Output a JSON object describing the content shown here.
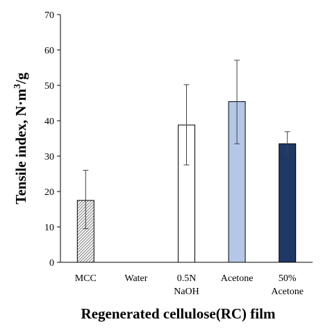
{
  "chart_data": {
    "type": "bar",
    "categories": [
      {
        "lines": [
          "MCC"
        ]
      },
      {
        "lines": [
          "Water"
        ]
      },
      {
        "lines": [
          "0.5N",
          "NaOH"
        ]
      },
      {
        "lines": [
          "Acetone"
        ]
      },
      {
        "lines": [
          "50%",
          "Acetone"
        ]
      }
    ],
    "values": [
      17.5,
      null,
      38.8,
      45.4,
      33.5
    ],
    "error_bars": [
      {
        "low": 9.5,
        "high": 26.0
      },
      null,
      {
        "low": 27.5,
        "high": 50.2
      },
      {
        "low": 33.5,
        "high": 57.1
      },
      {
        "low": 30.3,
        "high": 36.9
      }
    ],
    "bar_styles": [
      {
        "fill": "hatched",
        "stroke": "#000000"
      },
      {
        "fill": "none",
        "stroke": "#000000"
      },
      {
        "fill": "#ffffff",
        "stroke": "#000000"
      },
      {
        "fill": "#b4c7e7",
        "stroke": "#000000"
      },
      {
        "fill": "#1f3864",
        "stroke": "#000000"
      }
    ],
    "ylim": [
      0,
      70
    ],
    "yticks": [
      "0",
      "10",
      "20",
      "30",
      "40",
      "50",
      "60",
      "70"
    ],
    "ylabel": {
      "main": "Tensile index, N·m",
      "sup": "3",
      "tail": "/g"
    },
    "xlabel": "Regenerated cellulose(RC) film",
    "grid": false
  }
}
